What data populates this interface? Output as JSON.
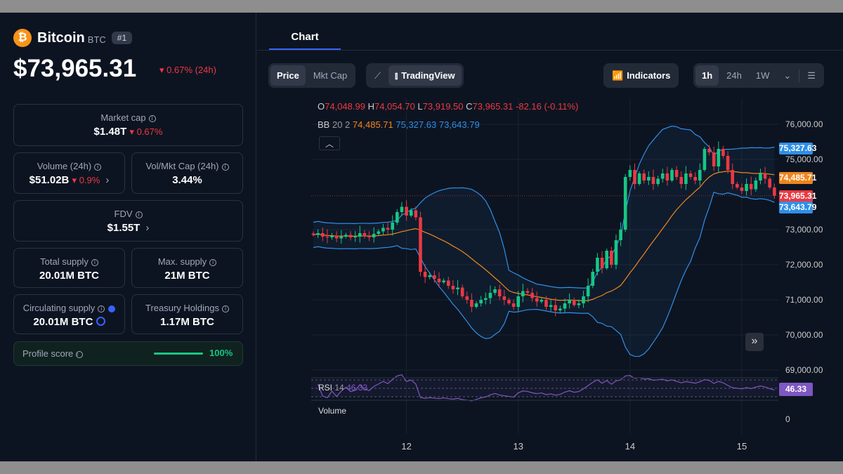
{
  "coin": {
    "name": "Bitcoin",
    "symbol": "BTC",
    "rank": "#1",
    "price": "$73,965.31",
    "change": "0.67% (24h)"
  },
  "stats": {
    "market_cap": {
      "label": "Market cap",
      "value": "$1.48T",
      "change": "0.67%"
    },
    "volume": {
      "label": "Volume (24h)",
      "value": "$51.02B",
      "change": "0.9%"
    },
    "vol_mkt": {
      "label": "Vol/Mkt Cap (24h)",
      "value": "3.44%"
    },
    "fdv": {
      "label": "FDV",
      "value": "$1.55T"
    },
    "total_supply": {
      "label": "Total supply",
      "value": "20.01M BTC"
    },
    "max_supply": {
      "label": "Max. supply",
      "value": "21M BTC"
    },
    "circ_supply": {
      "label": "Circulating supply",
      "value": "20.01M BTC"
    },
    "treasury": {
      "label": "Treasury Holdings",
      "value": "1.17M BTC"
    },
    "profile": {
      "label": "Profile score",
      "value": "100%",
      "fraction": 1.0
    }
  },
  "tabs": {
    "chart": "Chart"
  },
  "toolbar": {
    "price": "Price",
    "mkt_cap": "Mkt Cap",
    "tradingview": "TradingView",
    "indicators": "Indicators",
    "ranges": [
      "1h",
      "24h",
      "1W"
    ]
  },
  "chart_data": {
    "type": "candlestick",
    "ohlc_legend": {
      "o_label": "O",
      "o": "74,048.99",
      "h_label": "H",
      "h": "74,054.70",
      "l_label": "L",
      "l": "73,919.50",
      "c_label": "C",
      "c": "73,965.31",
      "chg": "-82.16 (-0.11%)"
    },
    "bb": {
      "label": "BB",
      "params": "20 2",
      "mid": "74,485.71",
      "upper": "75,327.63",
      "lower": "73,643.79",
      "mid_v": 74485.71,
      "upper_v": 75327.63,
      "lower_v": 73643.79
    },
    "last": {
      "label": "73,965.31",
      "v": 73965.31
    },
    "rsi": {
      "label": "RSI",
      "period": "14",
      "value": "46.33"
    },
    "volume": {
      "label": "Volume",
      "zero": "0"
    },
    "yticks": [
      {
        "v": 76000,
        "t": "76,000.00"
      },
      {
        "v": 75000,
        "t": "75,000.00"
      },
      {
        "v": 73000,
        "t": "73,000.00"
      },
      {
        "v": 72000,
        "t": "72,000.00"
      },
      {
        "v": 71000,
        "t": "71,000.00"
      },
      {
        "v": 70000,
        "t": "70,000.00"
      },
      {
        "v": 69000,
        "t": "69,000.00"
      }
    ],
    "ylim": [
      68740,
      76740
    ],
    "xticks": [
      {
        "i": 20,
        "t": "12"
      },
      {
        "i": 44,
        "t": "13"
      },
      {
        "i": 68,
        "t": "14"
      },
      {
        "i": 92,
        "t": "15"
      }
    ],
    "closes": [
      72850,
      72900,
      72800,
      72780,
      72820,
      72750,
      72800,
      72850,
      72780,
      72800,
      72900,
      72820,
      72780,
      72880,
      72950,
      73050,
      73000,
      73200,
      73500,
      73650,
      73400,
      73550,
      73350,
      71800,
      71650,
      71700,
      71600,
      71500,
      71550,
      71400,
      71300,
      71350,
      71100,
      71000,
      70800,
      70900,
      71000,
      71050,
      71200,
      71300,
      71100,
      71000,
      70900,
      70800,
      71100,
      71250,
      71200,
      71050,
      70950,
      71000,
      70800,
      70850,
      70700,
      70750,
      70900,
      71000,
      70850,
      70900,
      71100,
      71400,
      71800,
      72200,
      71900,
      72400,
      72000,
      72700,
      73000,
      74500,
      74700,
      74300,
      74600,
      74400,
      74500,
      74300,
      74450,
      74600,
      74400,
      74700,
      74500,
      74300,
      74600,
      74500,
      74400,
      74700,
      75300,
      75200,
      74800,
      75300,
      75100,
      74700,
      74300,
      74200,
      74100,
      74300,
      74150,
      74400,
      74600,
      74450,
      74200,
      73965
    ]
  },
  "colors": {
    "up": "#16c784",
    "down": "#ea3943",
    "bb_band": "#2f8fe8",
    "bb_mid": "#f0851c",
    "rsi": "#7e57c2"
  }
}
